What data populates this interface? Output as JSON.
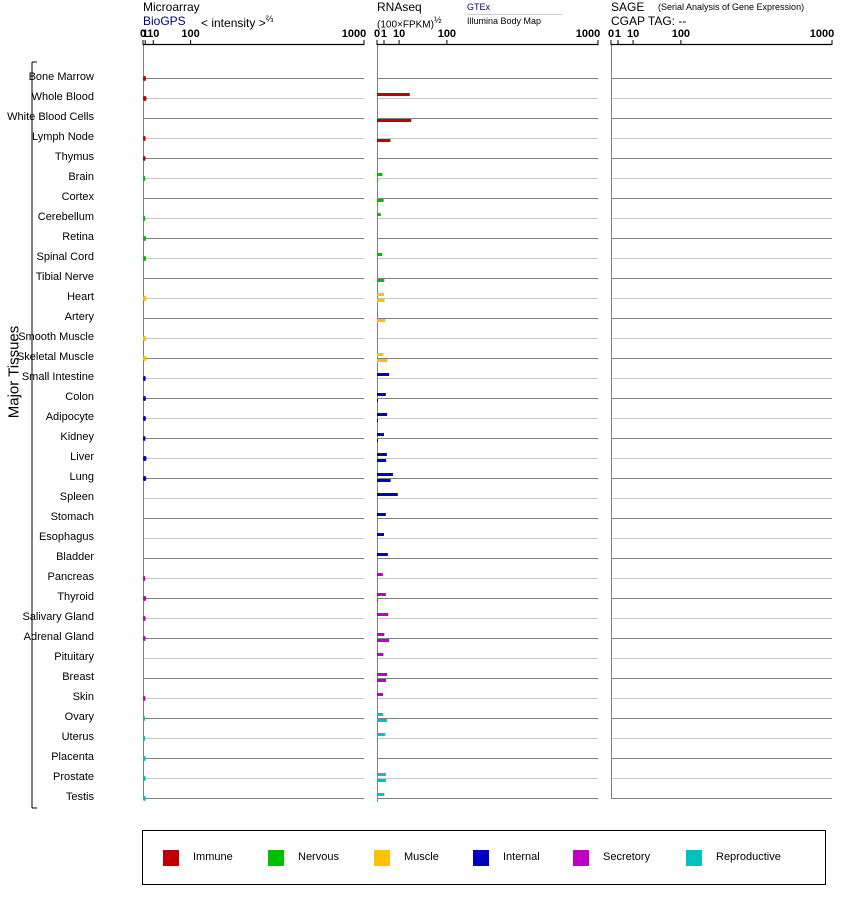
{
  "header": {
    "microarray_title": "Microarray",
    "biogps_label": "BioGPS",
    "intensity_label": "< intensity >",
    "intensity_exp": "⅔",
    "rnaseq_title": "RNAseq",
    "fpkm_label": "(100×FPKM)",
    "fpkm_exp": "½",
    "gtex_label": "GTEx",
    "illumina_label": "Illumina Body Map",
    "sage_title": "SAGE",
    "sage_desc": "(Serial Analysis of Gene Expression)",
    "cgap_label": "CGAP  TAG:  --"
  },
  "y_axis_label": "Major Tissues",
  "tick_labels": [
    "0",
    "1",
    "10",
    "100",
    "1000"
  ],
  "legend": [
    {
      "name": "Immune",
      "color": "#c00000"
    },
    {
      "name": "Nervous",
      "color": "#00c000"
    },
    {
      "name": "Muscle",
      "color": "#ffc000"
    },
    {
      "name": "Internal",
      "color": "#0000c0"
    },
    {
      "name": "Secretory",
      "color": "#c000c0"
    },
    {
      "name": "Reproductive",
      "color": "#00c0c0"
    }
  ],
  "chart_data": {
    "type": "bar",
    "panels": [
      "Microarray",
      "RNAseq",
      "SAGE"
    ],
    "scale": "power (intensity^2/3 for microarray, FPKM^1/2 for RNAseq), axis 0-1000",
    "xlim": [
      0,
      1000
    ],
    "series_order": [
      "microarray_biogps",
      "rnaseq_gtex",
      "rnaseq_illumina",
      "sage_cgap"
    ],
    "tissues": [
      {
        "name": "Bone Marrow",
        "group": "Immune",
        "microarray": 1.6,
        "gtex": null,
        "illumina": null
      },
      {
        "name": "Whole Blood",
        "group": "Immune",
        "microarray": 2.0,
        "gtex": 22,
        "illumina": null
      },
      {
        "name": "White Blood Cells",
        "group": "Immune",
        "microarray": null,
        "gtex": null,
        "illumina": 24
      },
      {
        "name": "Lymph Node",
        "group": "Immune",
        "microarray": 1.3,
        "gtex": null,
        "illumina": 3.7
      },
      {
        "name": "Thymus",
        "group": "Immune",
        "microarray": 1.2,
        "gtex": null,
        "illumina": null
      },
      {
        "name": "Brain",
        "group": "Nervous",
        "microarray": 1.1,
        "gtex": 0.6,
        "illumina": 0.03
      },
      {
        "name": "Cortex",
        "group": "Nervous",
        "microarray": null,
        "gtex": null,
        "illumina": 0.9
      },
      {
        "name": "Cerebellum",
        "group": "Nervous",
        "microarray": 1.1,
        "gtex": 0.3,
        "illumina": null
      },
      {
        "name": "Retina",
        "group": "Nervous",
        "microarray": 1.7,
        "gtex": null,
        "illumina": null
      },
      {
        "name": "Spinal Cord",
        "group": "Nervous",
        "microarray": 1.7,
        "gtex": 0.55,
        "illumina": null
      },
      {
        "name": "Tibial Nerve",
        "group": "Nervous",
        "microarray": null,
        "gtex": null,
        "illumina": 1.1
      },
      {
        "name": "Heart",
        "group": "Muscle",
        "microarray": 2.0,
        "gtex": 1.0,
        "illumina": 1.2
      },
      {
        "name": "Artery",
        "group": "Muscle",
        "microarray": null,
        "gtex": null,
        "illumina": 1.4
      },
      {
        "name": "Smooth Muscle",
        "group": "Muscle",
        "microarray": 1.7,
        "gtex": null,
        "illumina": null
      },
      {
        "name": "Skeletal Muscle",
        "group": "Muscle",
        "microarray": 2.1,
        "gtex": 0.85,
        "illumina": 2.2
      },
      {
        "name": "Small Intestine",
        "group": "Internal",
        "microarray": 1.4,
        "gtex": 3.0,
        "illumina": null
      },
      {
        "name": "Colon",
        "group": "Internal",
        "microarray": 1.5,
        "gtex": 1.6,
        "illumina": 0.02
      },
      {
        "name": "Adipocyte",
        "group": "Internal",
        "microarray": 1.5,
        "gtex": 2.1,
        "illumina": 0.02
      },
      {
        "name": "Kidney",
        "group": "Internal",
        "microarray": 1.2,
        "gtex": 1.0,
        "illumina": 0.02
      },
      {
        "name": "Liver",
        "group": "Internal",
        "microarray": 2.0,
        "gtex": 2.0,
        "illumina": 1.7
      },
      {
        "name": "Lung",
        "group": "Internal",
        "microarray": 1.8,
        "gtex": 5.2,
        "illumina": 3.8
      },
      {
        "name": "Spleen",
        "group": "Internal",
        "microarray": null,
        "gtex": 8.8,
        "illumina": null
      },
      {
        "name": "Stomach",
        "group": "Internal",
        "microarray": null,
        "gtex": 1.6,
        "illumina": null
      },
      {
        "name": "Esophagus",
        "group": "Internal",
        "microarray": null,
        "gtex": 1.0,
        "illumina": null
      },
      {
        "name": "Bladder",
        "group": "Internal",
        "microarray": null,
        "gtex": 2.4,
        "illumina": null
      },
      {
        "name": "Pancreas",
        "group": "Secretory",
        "microarray": 1.1,
        "gtex": 0.7,
        "illumina": null
      },
      {
        "name": "Thyroid",
        "group": "Secretory",
        "microarray": 1.8,
        "gtex": 1.6,
        "illumina": 0.02
      },
      {
        "name": "Salivary Gland",
        "group": "Secretory",
        "microarray": 1.3,
        "gtex": 2.6,
        "illumina": null
      },
      {
        "name": "Adrenal Gland",
        "group": "Secretory",
        "microarray": 1.3,
        "gtex": 1.1,
        "illumina": 3.0
      },
      {
        "name": "Pituitary",
        "group": "Secretory",
        "microarray": null,
        "gtex": 0.85,
        "illumina": null
      },
      {
        "name": "Breast",
        "group": "Secretory",
        "microarray": null,
        "gtex": 2.1,
        "illumina": 1.7
      },
      {
        "name": "Skin",
        "group": "Secretory",
        "microarray": 1.2,
        "gtex": 0.75,
        "illumina": null
      },
      {
        "name": "Ovary",
        "group": "Reproductive",
        "microarray": 0.9,
        "gtex": 0.8,
        "illumina": 2.0
      },
      {
        "name": "Uterus",
        "group": "Reproductive",
        "microarray": 1.0,
        "gtex": 1.4,
        "illumina": null
      },
      {
        "name": "Placenta",
        "group": "Reproductive",
        "microarray": 1.4,
        "gtex": null,
        "illumina": null
      },
      {
        "name": "Prostate",
        "group": "Reproductive",
        "microarray": 1.4,
        "gtex": 1.6,
        "illumina": 1.6
      },
      {
        "name": "Testis",
        "group": "Reproductive",
        "microarray": 1.4,
        "gtex": 1.1,
        "illumina": 0.02
      }
    ]
  }
}
